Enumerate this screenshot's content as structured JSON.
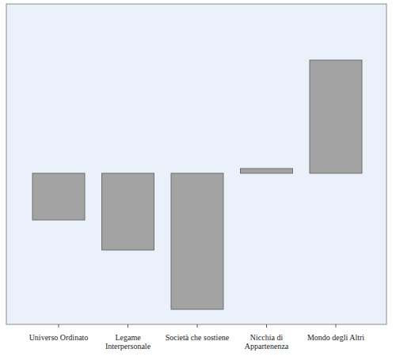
{
  "chart_data": {
    "type": "bar",
    "categories": [
      "Universo Ordinato",
      "Legame\nInterpersonale",
      "Società che sostiene",
      "Nicchia di\nAppartenenza",
      "Mondo degli Altri"
    ],
    "values": [
      -0.59,
      -0.97,
      -1.72,
      0.06,
      1.43
    ],
    "color": "#a3a3a3",
    "ylim": [
      -1.91,
      2.14
    ],
    "tick_labels": "x",
    "grid": false
  }
}
